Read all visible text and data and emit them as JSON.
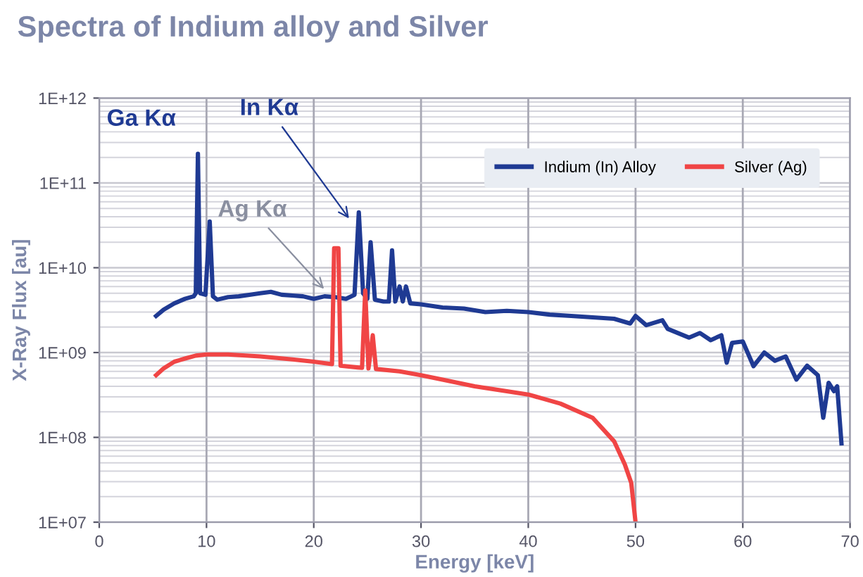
{
  "chart_data": {
    "type": "line",
    "title": "Spectra of Indium alloy and Silver",
    "xlabel": "Energy [keV]",
    "ylabel": "X-Ray Flux [au]",
    "log": "y",
    "grid": true,
    "legend": "top right",
    "marker": "none",
    "line_style": "solid",
    "xlim": [
      0,
      70
    ],
    "xticks": [
      0,
      10,
      20,
      30,
      40,
      50,
      60,
      70
    ],
    "ylim": [
      10000000.0,
      1000000000000.0
    ],
    "yticks": [
      {
        "value": 10000000.0,
        "label": "1E+07"
      },
      {
        "value": 100000000.0,
        "label": "1E+08"
      },
      {
        "value": 1000000000.0,
        "label": "1E+09"
      },
      {
        "value": 10000000000.0,
        "label": "1E+10"
      },
      {
        "value": 100000000000.0,
        "label": "1E+11"
      },
      {
        "value": 1000000000000.0,
        "label": "1E+12"
      }
    ],
    "series": [
      {
        "name": "Indium (In) Alloy",
        "color": "#1f3a93",
        "x": [
          5.3,
          6,
          7,
          8,
          8.8,
          9.0,
          9.2,
          9.4,
          9.9,
          10.3,
          10.6,
          11,
          12,
          13,
          14,
          15,
          16,
          17,
          18,
          19,
          20,
          21,
          22,
          23,
          23.8,
          24.2,
          24.6,
          25,
          25.3,
          25.7,
          26.5,
          27.0,
          27.3,
          27.6,
          28.0,
          28.3,
          28.6,
          29,
          30,
          32,
          34,
          36,
          38,
          40,
          42,
          44,
          46,
          48,
          49.5,
          50,
          51,
          52.5,
          53,
          55,
          56,
          57,
          58,
          58.5,
          59,
          60,
          61,
          62,
          63,
          64,
          65,
          66,
          67,
          67.5,
          68,
          68.5,
          68.8,
          69.2
        ],
        "values": [
          2700000000.0,
          3200000000.0,
          3800000000.0,
          4300000000.0,
          4600000000.0,
          5000000000.0,
          220000000000.0,
          5000000000.0,
          4800000000.0,
          35000000000.0,
          4600000000.0,
          4200000000.0,
          4500000000.0,
          4600000000.0,
          4800000000.0,
          5000000000.0,
          5200000000.0,
          4800000000.0,
          4700000000.0,
          4600000000.0,
          4300000000.0,
          4600000000.0,
          4500000000.0,
          4300000000.0,
          4800000000.0,
          45000000000.0,
          5000000000.0,
          4300000000.0,
          20000000000.0,
          4200000000.0,
          4000000000.0,
          4000000000.0,
          16000000000.0,
          4000000000.0,
          6000000000.0,
          4000000000.0,
          6000000000.0,
          3800000000.0,
          3700000000.0,
          3400000000.0,
          3300000000.0,
          3000000000.0,
          3100000000.0,
          3000000000.0,
          2800000000.0,
          2700000000.0,
          2600000000.0,
          2500000000.0,
          2200000000.0,
          2700000000.0,
          2100000000.0,
          2400000000.0,
          1900000000.0,
          1500000000.0,
          1700000000.0,
          1400000000.0,
          1600000000.0,
          760000000.0,
          1300000000.0,
          1350000000.0,
          690000000.0,
          1000000000.0,
          800000000.0,
          900000000.0,
          480000000.0,
          700000000.0,
          540000000.0,
          170000000.0,
          440000000.0,
          350000000.0,
          400000000.0,
          85000000.0
        ]
      },
      {
        "name": "Silver (Ag)",
        "color": "#f04545",
        "x": [
          5.3,
          6,
          7,
          8,
          9,
          10,
          12,
          15,
          18,
          20,
          21.7,
          21.9,
          22.3,
          22.5,
          24.5,
          24.8,
          25.1,
          25.5,
          25.8,
          28,
          30,
          32,
          35,
          38,
          40,
          43,
          46,
          48,
          49,
          49.6,
          50
        ],
        "values": [
          540000000.0,
          650000000.0,
          780000000.0,
          850000000.0,
          920000000.0,
          950000000.0,
          950000000.0,
          900000000.0,
          830000000.0,
          780000000.0,
          730000000.0,
          17000000000.0,
          17000000000.0,
          700000000.0,
          660000000.0,
          5400000000.0,
          650000000.0,
          1600000000.0,
          640000000.0,
          600000000.0,
          540000000.0,
          480000000.0,
          400000000.0,
          350000000.0,
          320000000.0,
          250000000.0,
          170000000.0,
          90000000.0,
          48000000.0,
          29000000.0,
          10000000.0
        ]
      }
    ],
    "annotations": [
      "Ga Kα",
      {
        "text": "In Kα",
        "x": 23.5,
        "y": 35000000000.0
      },
      {
        "text": "Ag Kα",
        "x": 21.2,
        "y": 5200000000.0
      }
    ]
  }
}
